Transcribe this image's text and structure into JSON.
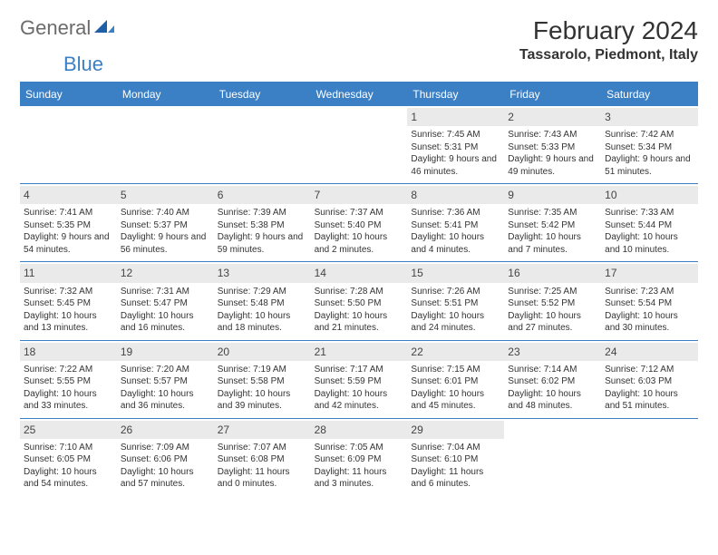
{
  "logo": {
    "left": "General",
    "right": "Blue"
  },
  "title": "February 2024",
  "location": "Tassarolo, Piedmont, Italy",
  "colors": {
    "accent": "#3b7fc4",
    "logo_gray": "#6b6b6b",
    "text": "#333333",
    "daynum_bg": "#eaeaea",
    "background": "#ffffff"
  },
  "day_headers": [
    "Sunday",
    "Monday",
    "Tuesday",
    "Wednesday",
    "Thursday",
    "Friday",
    "Saturday"
  ],
  "weeks": [
    [
      null,
      null,
      null,
      null,
      {
        "n": "1",
        "sr": "7:45 AM",
        "ss": "5:31 PM",
        "dl": "9 hours and 46 minutes."
      },
      {
        "n": "2",
        "sr": "7:43 AM",
        "ss": "5:33 PM",
        "dl": "9 hours and 49 minutes."
      },
      {
        "n": "3",
        "sr": "7:42 AM",
        "ss": "5:34 PM",
        "dl": "9 hours and 51 minutes."
      }
    ],
    [
      {
        "n": "4",
        "sr": "7:41 AM",
        "ss": "5:35 PM",
        "dl": "9 hours and 54 minutes."
      },
      {
        "n": "5",
        "sr": "7:40 AM",
        "ss": "5:37 PM",
        "dl": "9 hours and 56 minutes."
      },
      {
        "n": "6",
        "sr": "7:39 AM",
        "ss": "5:38 PM",
        "dl": "9 hours and 59 minutes."
      },
      {
        "n": "7",
        "sr": "7:37 AM",
        "ss": "5:40 PM",
        "dl": "10 hours and 2 minutes."
      },
      {
        "n": "8",
        "sr": "7:36 AM",
        "ss": "5:41 PM",
        "dl": "10 hours and 4 minutes."
      },
      {
        "n": "9",
        "sr": "7:35 AM",
        "ss": "5:42 PM",
        "dl": "10 hours and 7 minutes."
      },
      {
        "n": "10",
        "sr": "7:33 AM",
        "ss": "5:44 PM",
        "dl": "10 hours and 10 minutes."
      }
    ],
    [
      {
        "n": "11",
        "sr": "7:32 AM",
        "ss": "5:45 PM",
        "dl": "10 hours and 13 minutes."
      },
      {
        "n": "12",
        "sr": "7:31 AM",
        "ss": "5:47 PM",
        "dl": "10 hours and 16 minutes."
      },
      {
        "n": "13",
        "sr": "7:29 AM",
        "ss": "5:48 PM",
        "dl": "10 hours and 18 minutes."
      },
      {
        "n": "14",
        "sr": "7:28 AM",
        "ss": "5:50 PM",
        "dl": "10 hours and 21 minutes."
      },
      {
        "n": "15",
        "sr": "7:26 AM",
        "ss": "5:51 PM",
        "dl": "10 hours and 24 minutes."
      },
      {
        "n": "16",
        "sr": "7:25 AM",
        "ss": "5:52 PM",
        "dl": "10 hours and 27 minutes."
      },
      {
        "n": "17",
        "sr": "7:23 AM",
        "ss": "5:54 PM",
        "dl": "10 hours and 30 minutes."
      }
    ],
    [
      {
        "n": "18",
        "sr": "7:22 AM",
        "ss": "5:55 PM",
        "dl": "10 hours and 33 minutes."
      },
      {
        "n": "19",
        "sr": "7:20 AM",
        "ss": "5:57 PM",
        "dl": "10 hours and 36 minutes."
      },
      {
        "n": "20",
        "sr": "7:19 AM",
        "ss": "5:58 PM",
        "dl": "10 hours and 39 minutes."
      },
      {
        "n": "21",
        "sr": "7:17 AM",
        "ss": "5:59 PM",
        "dl": "10 hours and 42 minutes."
      },
      {
        "n": "22",
        "sr": "7:15 AM",
        "ss": "6:01 PM",
        "dl": "10 hours and 45 minutes."
      },
      {
        "n": "23",
        "sr": "7:14 AM",
        "ss": "6:02 PM",
        "dl": "10 hours and 48 minutes."
      },
      {
        "n": "24",
        "sr": "7:12 AM",
        "ss": "6:03 PM",
        "dl": "10 hours and 51 minutes."
      }
    ],
    [
      {
        "n": "25",
        "sr": "7:10 AM",
        "ss": "6:05 PM",
        "dl": "10 hours and 54 minutes."
      },
      {
        "n": "26",
        "sr": "7:09 AM",
        "ss": "6:06 PM",
        "dl": "10 hours and 57 minutes."
      },
      {
        "n": "27",
        "sr": "7:07 AM",
        "ss": "6:08 PM",
        "dl": "11 hours and 0 minutes."
      },
      {
        "n": "28",
        "sr": "7:05 AM",
        "ss": "6:09 PM",
        "dl": "11 hours and 3 minutes."
      },
      {
        "n": "29",
        "sr": "7:04 AM",
        "ss": "6:10 PM",
        "dl": "11 hours and 6 minutes."
      },
      null,
      null
    ]
  ],
  "labels": {
    "sunrise": "Sunrise:",
    "sunset": "Sunset:",
    "daylight": "Daylight:"
  }
}
